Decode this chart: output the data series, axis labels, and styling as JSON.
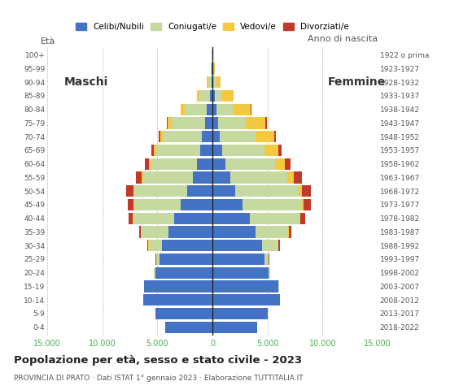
{
  "age_groups": [
    "0-4",
    "5-9",
    "10-14",
    "15-19",
    "20-24",
    "25-29",
    "30-34",
    "35-39",
    "40-44",
    "45-49",
    "50-54",
    "55-59",
    "60-64",
    "65-69",
    "70-74",
    "75-79",
    "80-84",
    "85-89",
    "90-94",
    "95-99",
    "100+"
  ],
  "birth_years": [
    "2018-2022",
    "2013-2017",
    "2008-2012",
    "2003-2007",
    "1998-2002",
    "1993-1997",
    "1988-1992",
    "1983-1987",
    "1978-1982",
    "1973-1977",
    "1968-1972",
    "1963-1967",
    "1958-1962",
    "1953-1957",
    "1948-1952",
    "1943-1947",
    "1938-1942",
    "1933-1937",
    "1928-1932",
    "1923-1927",
    "1922 o prima"
  ],
  "male_celibe": [
    4300,
    5200,
    6300,
    6200,
    5200,
    4800,
    4600,
    4000,
    3500,
    2900,
    2300,
    1800,
    1400,
    1100,
    950,
    700,
    500,
    250,
    100,
    50,
    20
  ],
  "male_coniugato": [
    0,
    0,
    0,
    20,
    100,
    300,
    1200,
    2500,
    3700,
    4200,
    4800,
    4500,
    4200,
    4000,
    3500,
    3000,
    2000,
    900,
    300,
    80,
    30
  ],
  "male_vedovo": [
    0,
    0,
    0,
    0,
    0,
    0,
    5,
    10,
    30,
    50,
    100,
    150,
    200,
    250,
    300,
    350,
    350,
    250,
    100,
    20,
    5
  ],
  "male_divorziato": [
    0,
    0,
    0,
    0,
    20,
    50,
    100,
    150,
    350,
    500,
    650,
    500,
    350,
    200,
    150,
    100,
    50,
    20,
    0,
    0,
    0
  ],
  "female_celibe": [
    4100,
    5000,
    6100,
    6000,
    5100,
    4700,
    4500,
    3900,
    3400,
    2700,
    2100,
    1600,
    1200,
    900,
    700,
    500,
    350,
    200,
    100,
    50,
    20
  ],
  "female_coniugata": [
    0,
    0,
    0,
    30,
    150,
    400,
    1500,
    3000,
    4500,
    5400,
    5700,
    5200,
    4500,
    3800,
    3200,
    2500,
    1600,
    700,
    250,
    60,
    20
  ],
  "female_vedova": [
    0,
    0,
    0,
    0,
    0,
    5,
    20,
    50,
    100,
    200,
    350,
    600,
    900,
    1300,
    1700,
    1800,
    1500,
    1000,
    400,
    80,
    20
  ],
  "female_divorziata": [
    0,
    0,
    0,
    0,
    20,
    50,
    100,
    200,
    400,
    650,
    800,
    700,
    500,
    250,
    200,
    150,
    80,
    30,
    0,
    0,
    0
  ],
  "color_celibe": "#4472c4",
  "color_coniugato": "#c5d9a0",
  "color_vedovo": "#f5c842",
  "color_divorziato": "#c0392b",
  "title": "Popolazione per età, sesso e stato civile - 2023",
  "subtitle": "PROVINCIA DI PRATO · Dati ISTAT 1° gennaio 2023 · Elaborazione TUTTITALIA.IT",
  "ylabel_left": "Età",
  "ylabel_right": "Anno di nascita",
  "label_maschi": "Maschi",
  "label_femmine": "Femmine",
  "xlim": 15000,
  "legend_labels": [
    "Celibi/Nubili",
    "Coniugati/e",
    "Vedovi/e",
    "Divorziati/e"
  ],
  "grid_ticks": [
    -15000,
    -10000,
    -5000,
    0,
    5000,
    10000,
    15000
  ],
  "tick_labels": [
    "15.000",
    "10.000",
    "5.000",
    "0",
    "5.000",
    "10.000",
    "15.000"
  ],
  "background_color": "#ffffff"
}
